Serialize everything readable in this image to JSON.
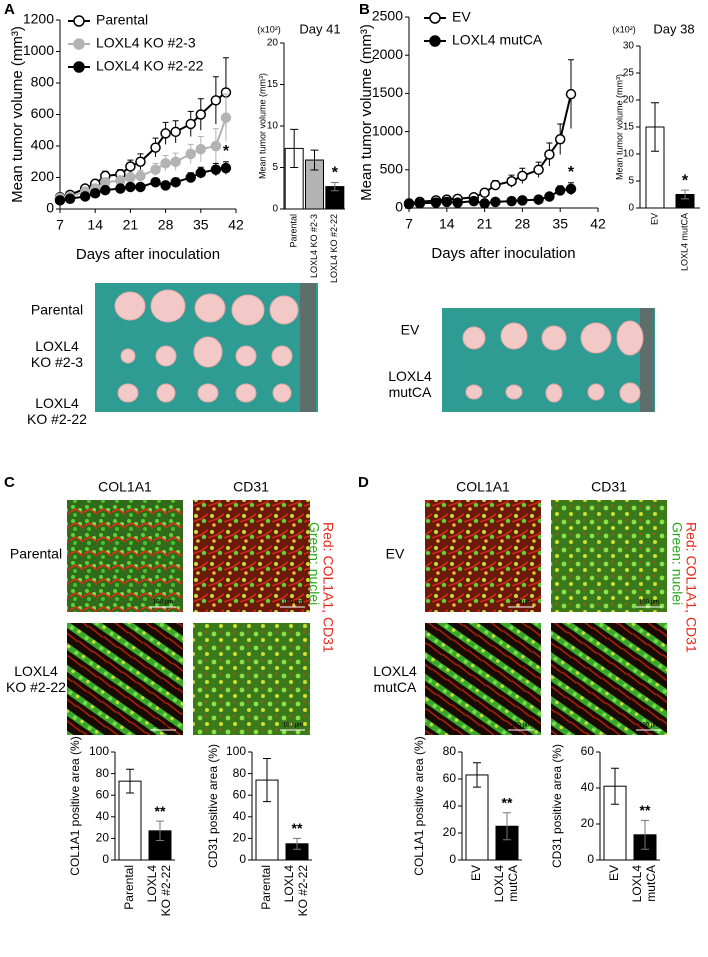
{
  "chart_data": [
    {
      "type": "line",
      "panel": "A",
      "x_label": "Days after inoculation",
      "y_label": "Mean tumor volume (mm³)",
      "x": [
        7,
        9,
        12,
        14,
        16,
        19,
        21,
        23,
        26,
        28,
        30,
        33,
        35,
        38,
        40
      ],
      "xlim": [
        7,
        42
      ],
      "xticks": [
        7,
        14,
        21,
        28,
        35,
        42
      ],
      "ylim": [
        0,
        1200
      ],
      "yticks": [
        0,
        200,
        400,
        600,
        800,
        1000,
        1200
      ],
      "series": [
        {
          "name": "Parental",
          "color": "#000000",
          "marker_fill": "#ffffff",
          "values": [
            75,
            90,
            130,
            160,
            210,
            220,
            270,
            300,
            390,
            480,
            490,
            540,
            600,
            690,
            740
          ],
          "errors": [
            10,
            15,
            20,
            25,
            30,
            30,
            40,
            50,
            60,
            70,
            70,
            80,
            100,
            150,
            220
          ]
        },
        {
          "name": "LOXL4 KO #2-3",
          "color": "#b3b3b3",
          "marker_fill": "#b3b3b3",
          "values": [
            70,
            80,
            110,
            130,
            170,
            180,
            200,
            210,
            250,
            290,
            300,
            350,
            380,
            400,
            580
          ],
          "errors": [
            10,
            10,
            15,
            20,
            25,
            30,
            30,
            35,
            40,
            50,
            55,
            60,
            80,
            110,
            150
          ]
        },
        {
          "name": "LOXL4 KO #2-22",
          "color": "#000000",
          "marker_fill": "#000000",
          "values": [
            55,
            65,
            80,
            100,
            120,
            130,
            140,
            140,
            170,
            150,
            170,
            200,
            230,
            250,
            260
          ],
          "errors": [
            10,
            10,
            10,
            15,
            15,
            20,
            20,
            20,
            25,
            25,
            25,
            30,
            35,
            40,
            40
          ]
        }
      ],
      "annotation": "*"
    },
    {
      "type": "bar",
      "title": "Day 41",
      "unit_label": "(x10²)",
      "y_label": "Mean tumor volume (mm³)",
      "categories": [
        "Parental",
        "LOXL4 KO #2-3",
        "LOXL4 KO #2-22"
      ],
      "values": [
        7.3,
        5.9,
        2.7
      ],
      "errors": [
        2.3,
        1.2,
        0.5
      ],
      "colors": [
        "#ffffff",
        "#b3b3b3",
        "#000000"
      ],
      "ylim": [
        0,
        20
      ],
      "yticks": [
        0,
        5,
        10,
        15,
        20
      ],
      "annotation": "*"
    },
    {
      "type": "line",
      "panel": "B",
      "x_label": "Days after inoculation",
      "y_label": "Mean tumor volume (mm³)",
      "x": [
        7,
        9,
        12,
        14,
        16,
        19,
        21,
        23,
        26,
        28,
        31,
        33,
        35,
        37
      ],
      "xlim": [
        7,
        42
      ],
      "xticks": [
        7,
        14,
        21,
        28,
        35,
        42
      ],
      "ylim": [
        0,
        2500
      ],
      "yticks": [
        0,
        500,
        1000,
        1500,
        2000,
        2500
      ],
      "series": [
        {
          "name": "EV",
          "color": "#000000",
          "marker_fill": "#ffffff",
          "values": [
            60,
            80,
            100,
            110,
            120,
            140,
            200,
            300,
            350,
            420,
            500,
            700,
            900,
            1490
          ],
          "errors": [
            20,
            20,
            30,
            30,
            30,
            40,
            50,
            60,
            80,
            100,
            100,
            150,
            200,
            450
          ]
        },
        {
          "name": "LOXL4 mutCA",
          "color": "#000000",
          "marker_fill": "#000000",
          "values": [
            50,
            60,
            70,
            80,
            70,
            90,
            60,
            80,
            90,
            100,
            110,
            150,
            230,
            250
          ],
          "errors": [
            10,
            10,
            15,
            15,
            15,
            20,
            20,
            20,
            20,
            20,
            30,
            40,
            60,
            80
          ]
        }
      ],
      "annotation": "*"
    },
    {
      "type": "bar",
      "title": "Day 38",
      "unit_label": "(x10²)",
      "y_label": "Mean tumor volume (mm³)",
      "categories": [
        "EV",
        "LOXL4 mutCA"
      ],
      "values": [
        15,
        2.5
      ],
      "errors": [
        4.5,
        0.8
      ],
      "colors": [
        "#ffffff",
        "#000000"
      ],
      "ylim": [
        0,
        30
      ],
      "yticks": [
        0,
        5,
        10,
        15,
        20,
        25,
        30
      ],
      "annotation": "*"
    },
    {
      "type": "bar",
      "y_label": "COL1A1 positive area (%)",
      "categories": [
        "Parental",
        "LOXL4\nKO #2-22"
      ],
      "values": [
        73,
        27
      ],
      "errors": [
        11,
        9
      ],
      "colors": [
        "#ffffff",
        "#000000"
      ],
      "ylim": [
        0,
        100
      ],
      "yticks": [
        0,
        20,
        40,
        60,
        80,
        100
      ],
      "annotation": "**"
    },
    {
      "type": "bar",
      "y_label": "CD31 positive area (%)",
      "categories": [
        "Parental",
        "LOXL4\nKO #2-22"
      ],
      "values": [
        74,
        15
      ],
      "errors": [
        20,
        5
      ],
      "colors": [
        "#ffffff",
        "#000000"
      ],
      "ylim": [
        0,
        100
      ],
      "yticks": [
        0,
        20,
        40,
        60,
        80,
        100
      ],
      "annotation": "**"
    },
    {
      "type": "bar",
      "y_label": "COL1A1 positive area (%)",
      "categories": [
        "EV",
        "LOXL4\nmutCA"
      ],
      "values": [
        63,
        25
      ],
      "errors": [
        9,
        10
      ],
      "colors": [
        "#ffffff",
        "#000000"
      ],
      "ylim": [
        0,
        80
      ],
      "yticks": [
        0,
        20,
        40,
        60,
        80
      ],
      "annotation": "**"
    },
    {
      "type": "bar",
      "y_label": "CD31 positive area (%)",
      "categories": [
        "EV",
        "LOXL4\nmutCA"
      ],
      "values": [
        41,
        14
      ],
      "errors": [
        10,
        8
      ],
      "colors": [
        "#ffffff",
        "#000000"
      ],
      "ylim": [
        0,
        60
      ],
      "yticks": [
        0,
        20,
        40,
        60
      ],
      "annotation": "**"
    }
  ],
  "photo_A": {
    "rows": [
      "Parental",
      "LOXL4\nKO #2-3",
      "LOXL4\nKO #2-22"
    ]
  },
  "photo_B": {
    "rows": [
      "EV",
      "LOXL4\nmutCA"
    ]
  },
  "micro_C": {
    "panel": "C",
    "columns": [
      "COL1A1",
      "CD31"
    ],
    "rows": [
      "Parental",
      "LOXL4\nKO #2-22"
    ],
    "legend_red": "Red: COL1A1, CD31",
    "legend_green": "Green: nuclei",
    "scale_bar": "100 μm"
  },
  "micro_D": {
    "panel": "D",
    "columns": [
      "COL1A1",
      "CD31"
    ],
    "rows": [
      "EV",
      "LOXL4\nmutCA"
    ],
    "legend_red": "Red: COL1A1, CD31",
    "legend_green": "Green: nuclei",
    "scale_bar": "100 μm"
  }
}
